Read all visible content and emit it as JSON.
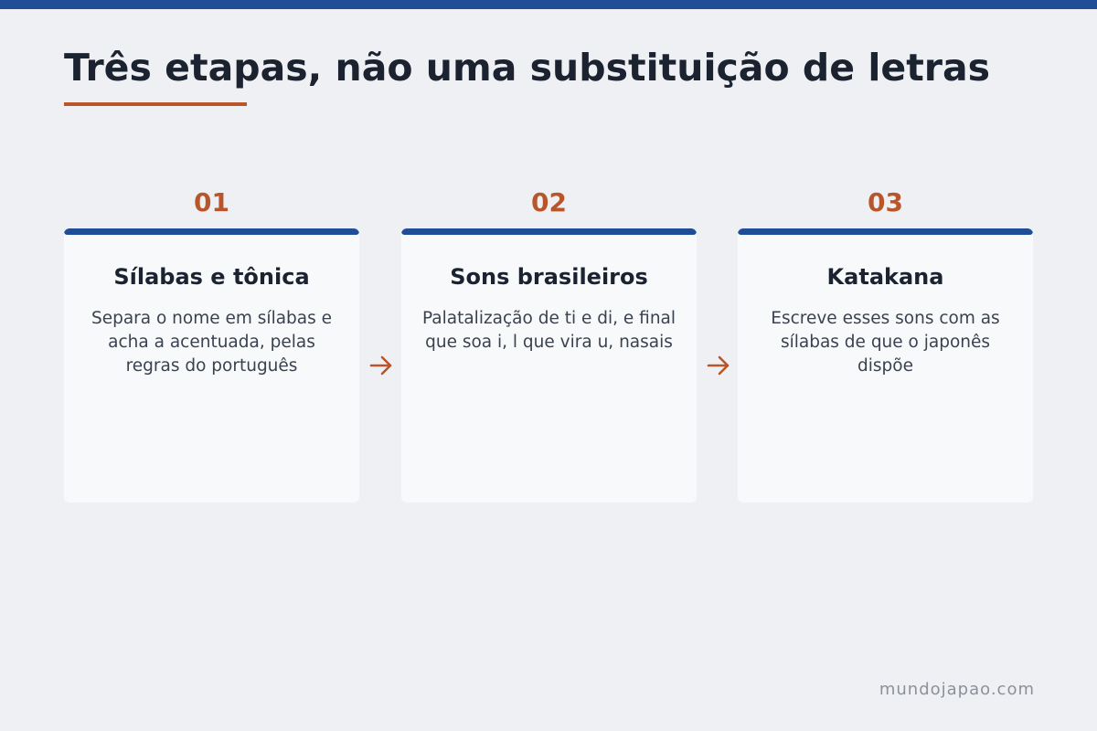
{
  "title": "Três etapas, não uma substituição de letras",
  "steps": [
    {
      "number": "01",
      "title": "Sílabas e tônica",
      "text": "Separa o nome em sílabas e acha a acentuada, pelas regras do português"
    },
    {
      "number": "02",
      "title": "Sons brasileiros",
      "text": "Palatalização de ti e di, e final que soa i, l que vira u, nasais"
    },
    {
      "number": "03",
      "title": "Katakana",
      "text": "Escreve esses sons com as sílabas de que o japonês dispõe"
    }
  ],
  "footer": "mundojapao.com",
  "colors": {
    "accent": "#b9552a",
    "primary": "#1f4e96",
    "background": "#eff0f3",
    "card": "#f8f9fb",
    "heading": "#1b2230"
  },
  "icons": {
    "connector": "arrow-right-icon"
  }
}
